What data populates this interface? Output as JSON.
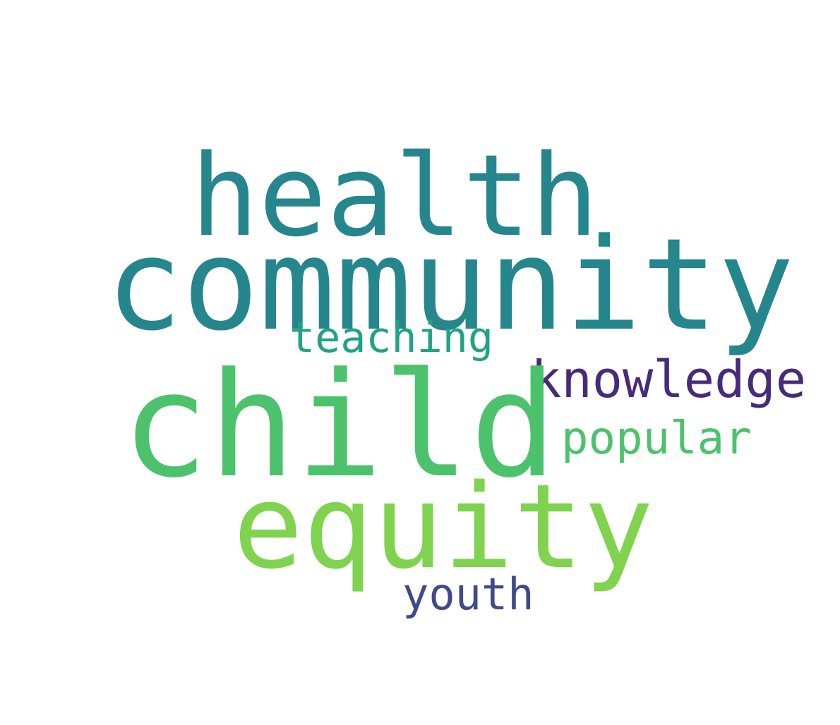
{
  "wordcloud": {
    "words": [
      {
        "key": "health",
        "text": "health",
        "color": "#26868d"
      },
      {
        "key": "community",
        "text": "community",
        "color": "#26868d"
      },
      {
        "key": "teaching",
        "text": "teaching",
        "color": "#20a385"
      },
      {
        "key": "knowledge",
        "text": "knowledge",
        "color": "#472b7a"
      },
      {
        "key": "child",
        "text": "child",
        "color": "#4cc26c"
      },
      {
        "key": "popular",
        "text": "popular",
        "color": "#4cc26c"
      },
      {
        "key": "equity",
        "text": "equity",
        "color": "#7fd34e"
      },
      {
        "key": "youth",
        "text": "youth",
        "color": "#3e4a89"
      }
    ]
  }
}
